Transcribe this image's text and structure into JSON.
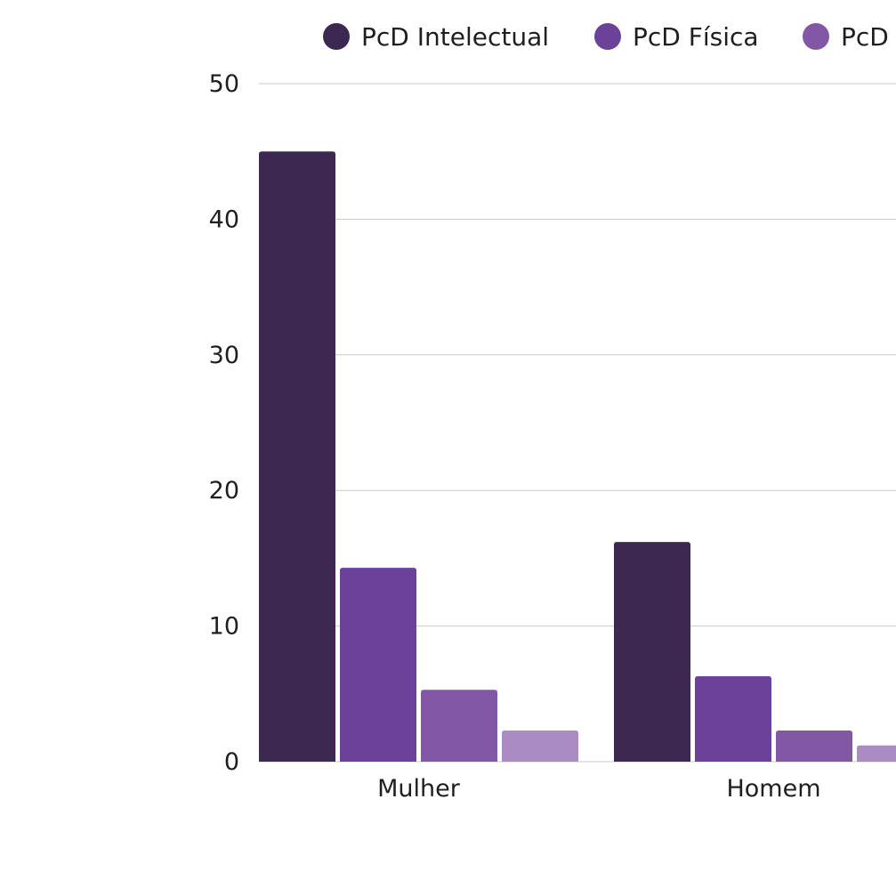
{
  "chart_data": {
    "type": "bar",
    "categories": [
      "Mulher",
      "Homem"
    ],
    "series": [
      {
        "name": "PcD Intelectual",
        "color": "#3d2852",
        "values": [
          45,
          16.2
        ]
      },
      {
        "name": "PcD Física",
        "color": "#6b4199",
        "values": [
          14.3,
          6.3
        ]
      },
      {
        "name": "PcD",
        "color": "#8258a6",
        "values": [
          5.3,
          2.3
        ]
      },
      {
        "name": "",
        "color": "#ab8bc4",
        "values": [
          2.3,
          1.2
        ]
      }
    ],
    "yticks": [
      "0",
      "10",
      "20",
      "30",
      "40",
      "50"
    ],
    "ylim": [
      0,
      50
    ],
    "grid": true,
    "legend": "top"
  }
}
